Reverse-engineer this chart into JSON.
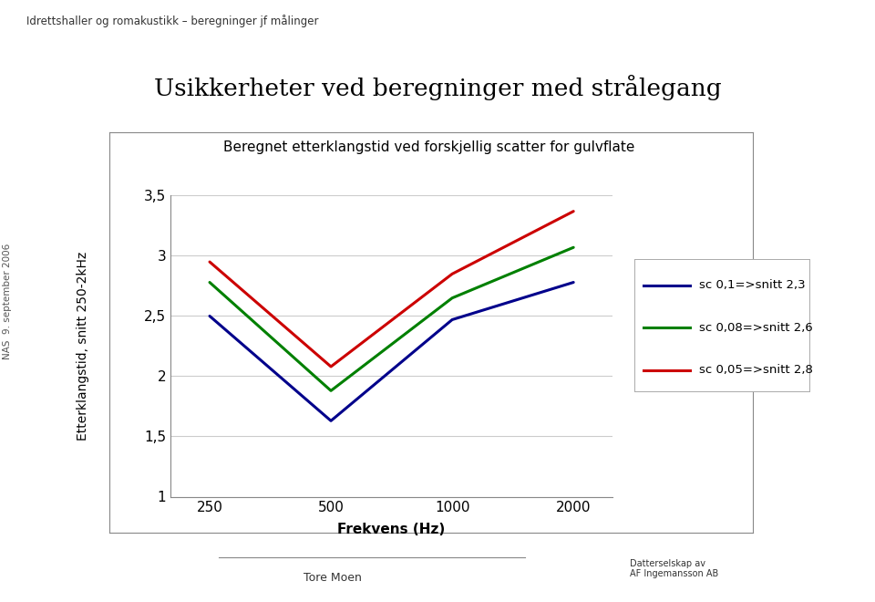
{
  "title_main": "Usikkerheter ved beregninger med strålegang",
  "title_sub": "Beregnet etterklangstid ved forskjellig scatter for gulvflate",
  "header": "Idrettshaller og romakustikk – beregninger jf målinger",
  "side_text": "NAS  9. september 2006",
  "xlabel": "Frekvens (Hz)",
  "ylabel": "Etterklangstid, snitt 250-2kHz",
  "freqs": [
    250,
    500,
    1000,
    2000
  ],
  "series": [
    {
      "label": "sc 0,1=>snitt 2,3",
      "color": "#00008B",
      "values": [
        2.5,
        1.63,
        2.47,
        2.78
      ]
    },
    {
      "label": "sc 0,08=>snitt 2,6",
      "color": "#008000",
      "values": [
        2.78,
        1.88,
        2.65,
        3.07
      ]
    },
    {
      "label": "sc 0,05=>snitt 2,8",
      "color": "#CC0000",
      "values": [
        2.95,
        2.08,
        2.85,
        3.37
      ]
    }
  ],
  "ylim": [
    1.0,
    3.5
  ],
  "yticks": [
    1.0,
    1.5,
    2.0,
    2.5,
    3.0,
    3.5
  ],
  "bg_color": "#FFFFFF",
  "plot_bg": "#FFFFFF",
  "grid_color": "#CCCCCC",
  "line_width": 2.2
}
